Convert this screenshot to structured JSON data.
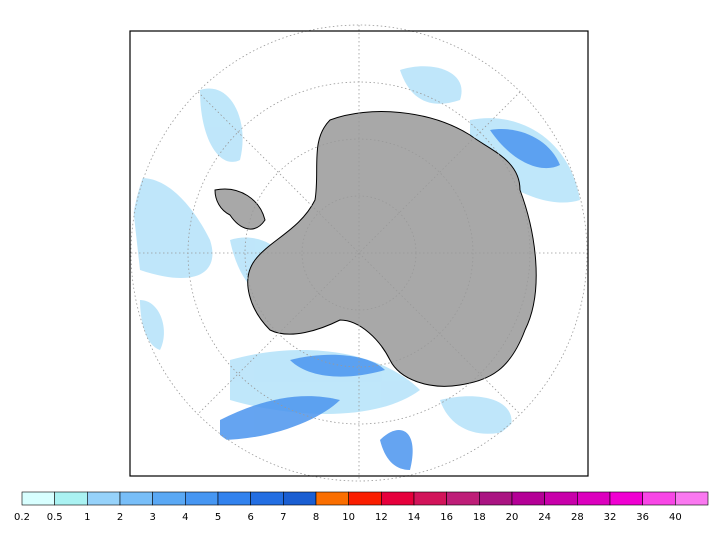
{
  "colorbar": {
    "labels": [
      0.2,
      0.5,
      1,
      2,
      3,
      4,
      5,
      6,
      7,
      8,
      10,
      12,
      14,
      16,
      18,
      20,
      24,
      28,
      32,
      36,
      40
    ],
    "colors": [
      "#d8ffff",
      "#aaf2f2",
      "#96d2fa",
      "#78bef8",
      "#5aa8f4",
      "#4696f2",
      "#3282ee",
      "#236ee2",
      "#1a5ed2",
      "#fa6e00",
      "#fa1e00",
      "#e6003c",
      "#d2145a",
      "#be1e78",
      "#aa1482",
      "#b40096",
      "#c800aa",
      "#dc00be",
      "#f000d2",
      "#f846e6",
      "#fa78f0"
    ]
  }
}
